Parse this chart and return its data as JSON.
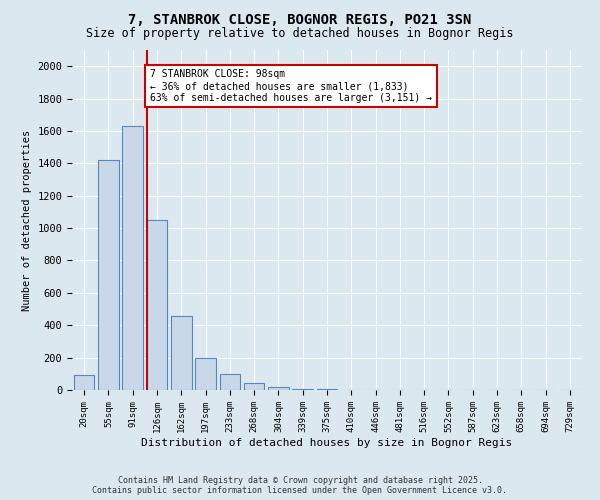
{
  "title1": "7, STANBROK CLOSE, BOGNOR REGIS, PO21 3SN",
  "title2": "Size of property relative to detached houses in Bognor Regis",
  "xlabel": "Distribution of detached houses by size in Bognor Regis",
  "ylabel": "Number of detached properties",
  "bar_categories": [
    "20sqm",
    "55sqm",
    "91sqm",
    "126sqm",
    "162sqm",
    "197sqm",
    "233sqm",
    "268sqm",
    "304sqm",
    "339sqm",
    "375sqm",
    "410sqm",
    "446sqm",
    "481sqm",
    "516sqm",
    "552sqm",
    "587sqm",
    "623sqm",
    "658sqm",
    "694sqm",
    "729sqm"
  ],
  "bar_values": [
    91,
    1420,
    1633,
    1053,
    460,
    198,
    100,
    45,
    18,
    8,
    4,
    2,
    1,
    1,
    0,
    0,
    0,
    0,
    0,
    0,
    0
  ],
  "bar_color": "#c8d8e8",
  "bar_edge_color": "#5588bb",
  "annotation_title": "7 STANBROK CLOSE: 98sqm",
  "annotation_line1": "← 36% of detached houses are smaller (1,833)",
  "annotation_line2": "63% of semi-detached houses are larger (3,151) →",
  "annotation_box_color": "#ffffff",
  "annotation_box_edge": "#cc0000",
  "vline_color": "#cc0000",
  "vline_x": 2.57,
  "ylim": [
    0,
    2100
  ],
  "yticks": [
    0,
    200,
    400,
    600,
    800,
    1000,
    1200,
    1400,
    1600,
    1800,
    2000
  ],
  "footer1": "Contains HM Land Registry data © Crown copyright and database right 2025.",
  "footer2": "Contains public sector information licensed under the Open Government Licence v3.0.",
  "bg_color": "#dce8f0",
  "plot_bg_color": "#dce8f0",
  "grid_color": "#ffffff"
}
